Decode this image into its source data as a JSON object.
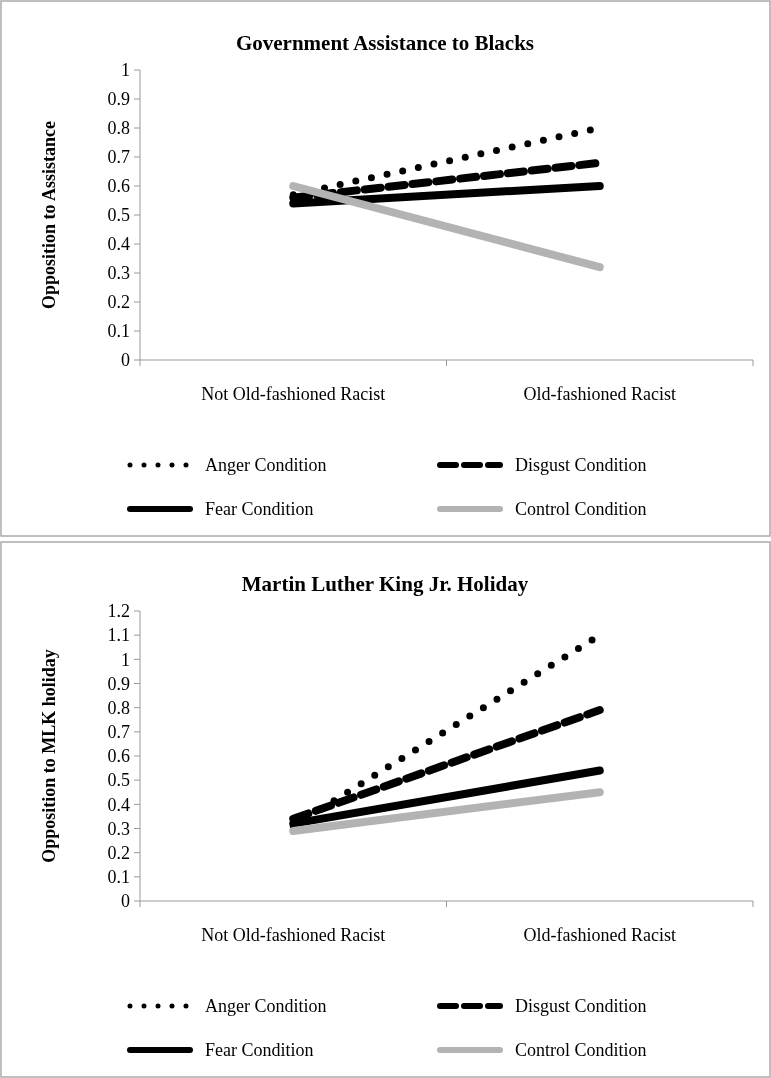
{
  "chart_data": [
    {
      "type": "line",
      "title": "Government Assistance to Blacks",
      "ylabel": "Opposition to Assistance",
      "categories": [
        "Not Old-fashioned Racist",
        "Old-fashioned Racist"
      ],
      "series": [
        {
          "name": "Anger Condition",
          "color": "#000000",
          "line_style": "dotted",
          "values": [
            0.57,
            0.8
          ]
        },
        {
          "name": "Disgust Condition",
          "color": "#000000",
          "line_style": "dashed",
          "values": [
            0.56,
            0.68
          ]
        },
        {
          "name": "Fear Condition",
          "color": "#000000",
          "line_style": "solid",
          "values": [
            0.54,
            0.6
          ]
        },
        {
          "name": "Control Condition",
          "color": "#b3b3b3",
          "line_style": "solid",
          "values": [
            0.6,
            0.32
          ]
        }
      ],
      "ylim": [
        0,
        1
      ],
      "yticks": [
        0,
        0.1,
        0.2,
        0.3,
        0.4,
        0.5,
        0.6,
        0.7,
        0.8,
        0.9,
        1
      ],
      "grid": false,
      "legend": "bottom"
    },
    {
      "type": "line",
      "title": "Martin Luther King Jr. Holiday",
      "ylabel": "Opposition to MLK holiday",
      "categories": [
        "Not Old-fashioned Racist",
        "Old-fashioned Racist"
      ],
      "series": [
        {
          "name": "Anger Condition",
          "color": "#000000",
          "line_style": "dotted",
          "values": [
            0.31,
            1.1
          ]
        },
        {
          "name": "Disgust Condition",
          "color": "#000000",
          "line_style": "dashed",
          "values": [
            0.34,
            0.79
          ]
        },
        {
          "name": "Fear Condition",
          "color": "#000000",
          "line_style": "solid",
          "values": [
            0.32,
            0.54
          ]
        },
        {
          "name": "Control Condition",
          "color": "#b3b3b3",
          "line_style": "solid",
          "values": [
            0.29,
            0.45
          ]
        }
      ],
      "ylim": [
        0,
        1.2
      ],
      "yticks": [
        0,
        0.1,
        0.2,
        0.3,
        0.4,
        0.5,
        0.6,
        0.7,
        0.8,
        0.9,
        1,
        1.1,
        1.2
      ],
      "grid": false,
      "legend": "bottom"
    }
  ]
}
